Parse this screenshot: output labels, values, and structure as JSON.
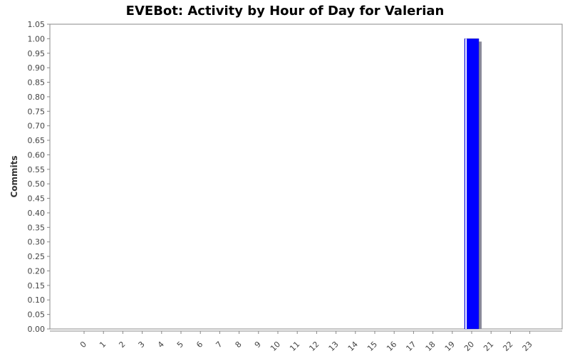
{
  "chart_data": {
    "type": "bar",
    "title": "EVEBot: Activity by Hour of Day for Valerian",
    "xlabel": "",
    "ylabel": "Commits",
    "categories": [
      "0",
      "1",
      "2",
      "3",
      "4",
      "5",
      "6",
      "7",
      "8",
      "9",
      "10",
      "11",
      "12",
      "13",
      "14",
      "15",
      "16",
      "17",
      "18",
      "19",
      "20",
      "21",
      "22",
      "23"
    ],
    "values": [
      0,
      0,
      0,
      0,
      0,
      0,
      0,
      0,
      0,
      0,
      0,
      0,
      0,
      0,
      0,
      0,
      0,
      0,
      0,
      0,
      1,
      0,
      0,
      0
    ],
    "ylim": [
      0,
      1.05
    ],
    "yticks": [
      "0.00",
      "0.05",
      "0.10",
      "0.15",
      "0.20",
      "0.25",
      "0.30",
      "0.35",
      "0.40",
      "0.45",
      "0.50",
      "0.55",
      "0.60",
      "0.65",
      "0.70",
      "0.75",
      "0.80",
      "0.85",
      "0.90",
      "0.95",
      "1.00",
      "1.05"
    ],
    "grid": false,
    "colors": {
      "bar": "#0000ff",
      "shadow": "#8a8a9a",
      "axis": "#888888"
    }
  }
}
